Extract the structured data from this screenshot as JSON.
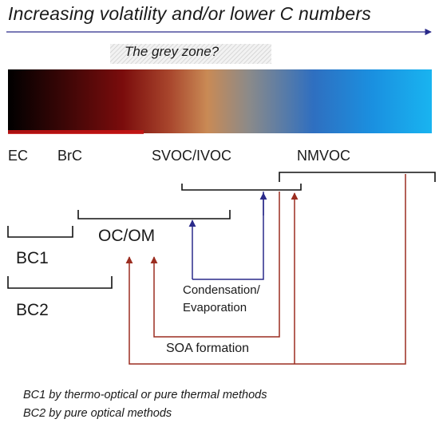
{
  "title": "Increasing volatility and/or lower C numbers",
  "grey_zone_label": "The grey zone?",
  "spectrum_labels": {
    "ec": "EC",
    "brc": "BrC",
    "svoc_ivoc": "SVOC/IVOC",
    "nmvoc": "NMVOC"
  },
  "groups": {
    "oc_om": "OC/OM",
    "bc1": "BC1",
    "bc2": "BC2"
  },
  "processes": {
    "condensation_line1": "Condensation/",
    "condensation_line2": "Evaporation",
    "soa_formation": "SOA formation"
  },
  "notes": {
    "bc1_note": "BC1 by thermo-optical or pure thermal methods",
    "bc2_note": "BC2 by pure optical methods"
  },
  "colors": {
    "arrow_navy": "#2a2a8a",
    "arrow_red": "#9b2d20",
    "bracket": "#111111",
    "gradient_black": "#000000",
    "gradient_maroon": "#7a0c0c",
    "gradient_tan": "#c98a55",
    "gradient_blue": "#2f7fd6",
    "gradient_cyan": "#19b4f0"
  }
}
